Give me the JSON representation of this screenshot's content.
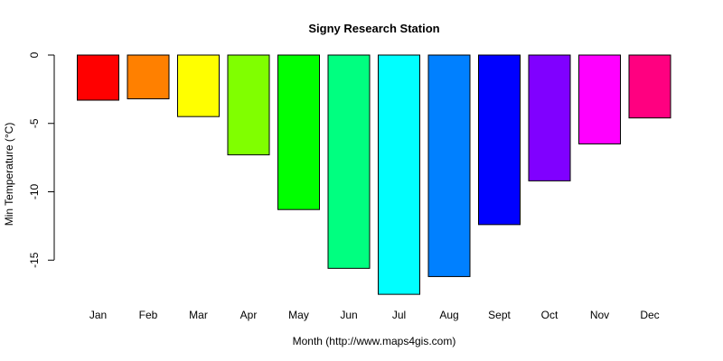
{
  "chart_data": {
    "type": "bar",
    "title": "Signy Research Station",
    "xlabel": "Month (http://www.maps4gis.com)",
    "ylabel": "Min Temperature (°C)",
    "categories": [
      "Jan",
      "Feb",
      "Mar",
      "Apr",
      "May",
      "Jun",
      "Jul",
      "Aug",
      "Sept",
      "Oct",
      "Nov",
      "Dec"
    ],
    "values": [
      -3.3,
      -3.2,
      -4.5,
      -7.3,
      -11.3,
      -15.6,
      -17.5,
      -16.2,
      -12.4,
      -9.2,
      -6.5,
      -4.6
    ],
    "colors": [
      "#ff0000",
      "#ff8000",
      "#ffff00",
      "#80ff00",
      "#00ff00",
      "#00ff80",
      "#00ffff",
      "#0080ff",
      "#0000ff",
      "#8000ff",
      "#ff00ff",
      "#ff0080"
    ],
    "y_ticks": [
      0,
      -5,
      -10,
      -15
    ],
    "y_tick_labels": [
      "0",
      "-5",
      "-10",
      "-15"
    ],
    "ylim": [
      -17.5,
      0
    ],
    "grid": false,
    "legend": "none"
  }
}
